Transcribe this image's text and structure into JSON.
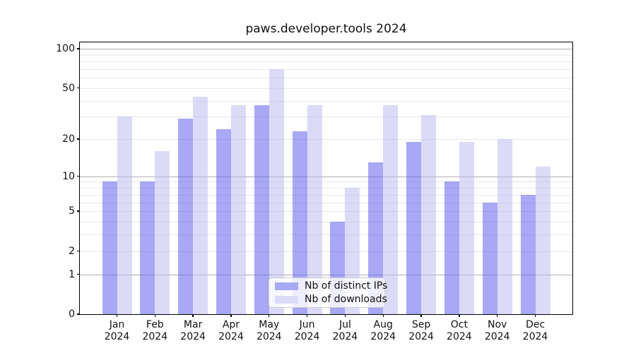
{
  "title": "paws.developer.tools 2024",
  "chart_data": {
    "type": "bar",
    "title": "paws.developer.tools 2024",
    "categories": [
      "Jan",
      "Feb",
      "Mar",
      "Apr",
      "May",
      "Jun",
      "Jul",
      "Aug",
      "Sep",
      "Oct",
      "Nov",
      "Dec"
    ],
    "year_label": "2024",
    "x_tick_labels": [
      "Jan 2024",
      "Feb 2024",
      "Mar 2024",
      "Apr 2024",
      "May 2024",
      "Jun 2024",
      "Jul 2024",
      "Aug 2024",
      "Sep 2024",
      "Oct 2024",
      "Nov 2024",
      "Dec 2024"
    ],
    "series": [
      {
        "name": "Nb of distinct IPs",
        "color": "#a8a8f6",
        "fill": "rgba(81,81,237,0.5)",
        "values": [
          9,
          9,
          29,
          24,
          37,
          23,
          4,
          13,
          19,
          9,
          6,
          7
        ]
      },
      {
        "name": "Nb of downloads",
        "color": "#dbdbf8",
        "fill": "rgba(183,183,241,0.5)",
        "values": [
          30,
          16,
          43,
          37,
          70,
          37,
          8,
          37,
          31,
          19,
          20,
          12
        ]
      }
    ],
    "yscale": "log1p",
    "ylim": [
      0,
      112
    ],
    "y_tick_values": [
      100,
      50,
      20,
      10,
      5,
      2,
      1,
      0
    ],
    "y_tick_labels": [
      "100",
      "50",
      "20",
      "10",
      "5",
      "2",
      "1",
      "0"
    ],
    "gridlines_major": [
      1,
      10,
      100
    ],
    "gridlines_minor": [
      2,
      3,
      4,
      5,
      6,
      7,
      8,
      9,
      20,
      30,
      40,
      50,
      60,
      70,
      80,
      90
    ],
    "grid": true,
    "legend_position": "lower center"
  },
  "colors": {
    "grid_major": "#b0b0b0",
    "grid_minor": "#e8e8e8",
    "axis": "#000000",
    "background": "#ffffff"
  }
}
